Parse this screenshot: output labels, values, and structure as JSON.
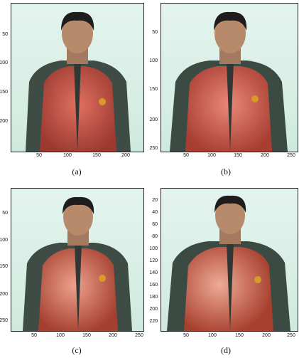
{
  "figure": {
    "panels": [
      {
        "caption": "(a)",
        "y_ticks": [
          "50",
          "100",
          "150",
          "200"
        ],
        "x_ticks": [
          "50",
          "100",
          "150",
          "200"
        ]
      },
      {
        "caption": "(b)",
        "y_ticks": [
          "50",
          "100",
          "150",
          "200",
          "250"
        ],
        "x_ticks": [
          "50",
          "100",
          "150",
          "200",
          "250"
        ]
      },
      {
        "caption": "(c)",
        "y_ticks": [
          "50",
          "100",
          "150",
          "200",
          "250"
        ],
        "x_ticks": [
          "50",
          "100",
          "150",
          "200",
          "250"
        ]
      },
      {
        "caption": "(d)",
        "y_ticks": [
          "20",
          "40",
          "60",
          "80",
          "100",
          "120",
          "140",
          "160",
          "180",
          "200",
          "220"
        ],
        "x_ticks": [
          "50",
          "100",
          "150",
          "200",
          "250"
        ]
      }
    ],
    "colors": {
      "background": "#dceee7",
      "jacket_red": "#c8473a",
      "jacket_dark": "#3c4a44",
      "hair": "#1e1c1c",
      "skin": "#b88a6c",
      "emblem": "#d89a2a"
    }
  }
}
